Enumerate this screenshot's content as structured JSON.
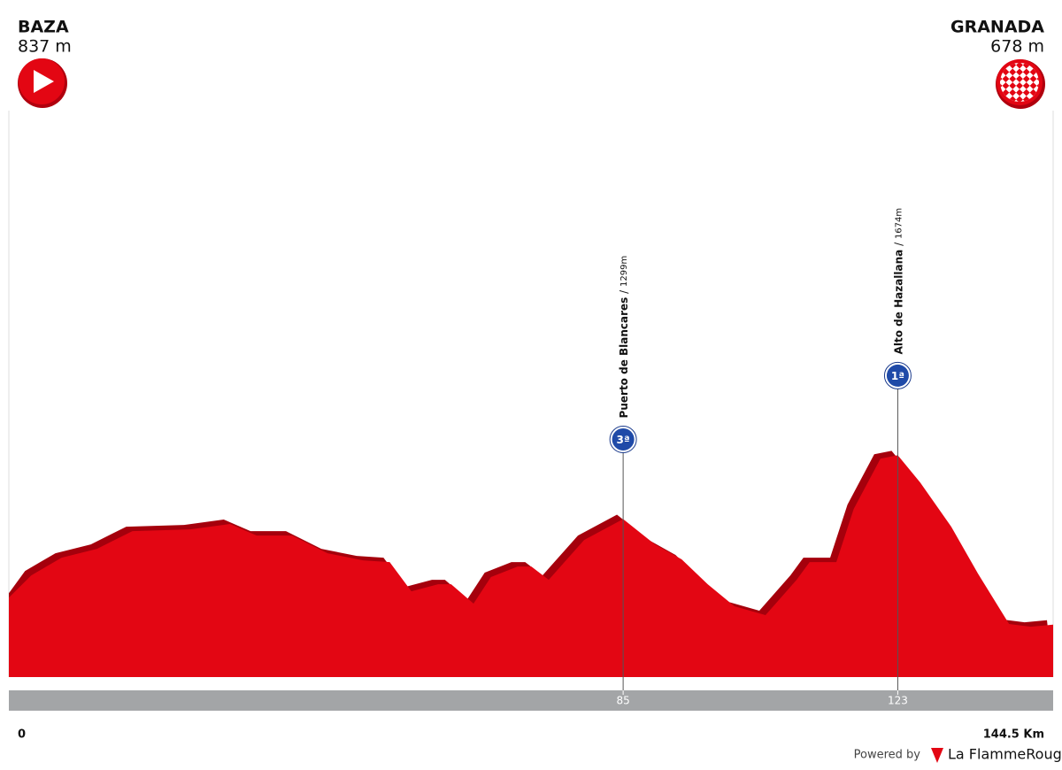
{
  "chart_data": {
    "type": "area",
    "start": {
      "name": "BAZA",
      "elevation": {
        "value": 837,
        "label": "837 m"
      }
    },
    "finish": {
      "name": "GRANADA",
      "elevation": {
        "value": 678,
        "label": "678 m"
      }
    },
    "x": [
      0,
      3.1,
      7.3,
      12.2,
      17.1,
      25.1,
      30.6,
      34.3,
      39.2,
      44.1,
      49,
      52.7,
      55.7,
      59.4,
      61.2,
      64.3,
      66.7,
      70.4,
      72.3,
      74.7,
      79.6,
      85,
      89.4,
      93.1,
      96.7,
      100.4,
      104.7,
      109,
      110.8,
      114.5,
      116.9,
      120.6,
      123,
      126.1,
      130.4,
      134.1,
      138.4,
      141.4,
      144.5
    ],
    "values": [
      837,
      968,
      1072,
      1124,
      1228,
      1238,
      1270,
      1202,
      1202,
      1098,
      1056,
      1046,
      874,
      916,
      916,
      802,
      958,
      1020,
      1020,
      942,
      1176,
      1299,
      1150,
      1062,
      916,
      786,
      734,
      942,
      1046,
      1046,
      1358,
      1654,
      1674,
      1514,
      1254,
      978,
      682,
      666,
      678
    ],
    "color": "#e30613",
    "xlim": [
      0,
      144.5
    ],
    "ylim": [
      370,
      3700
    ],
    "xticks": [
      0,
      {
        "value": 144.5,
        "label": "144.5 Km"
      }
    ],
    "climbs": [
      {
        "name": "Puerto de Blancares",
        "elevation": {
          "value": 1299,
          "label": "1299m"
        },
        "km": 85,
        "category": "3ª"
      },
      {
        "name": "Alto de Hazallana",
        "elevation": {
          "value": 1674,
          "label": "1674m"
        },
        "km": 123,
        "category": "1ª"
      }
    ],
    "footer": {
      "powered": "Powered by",
      "brand": "La FlammeRouge"
    }
  }
}
